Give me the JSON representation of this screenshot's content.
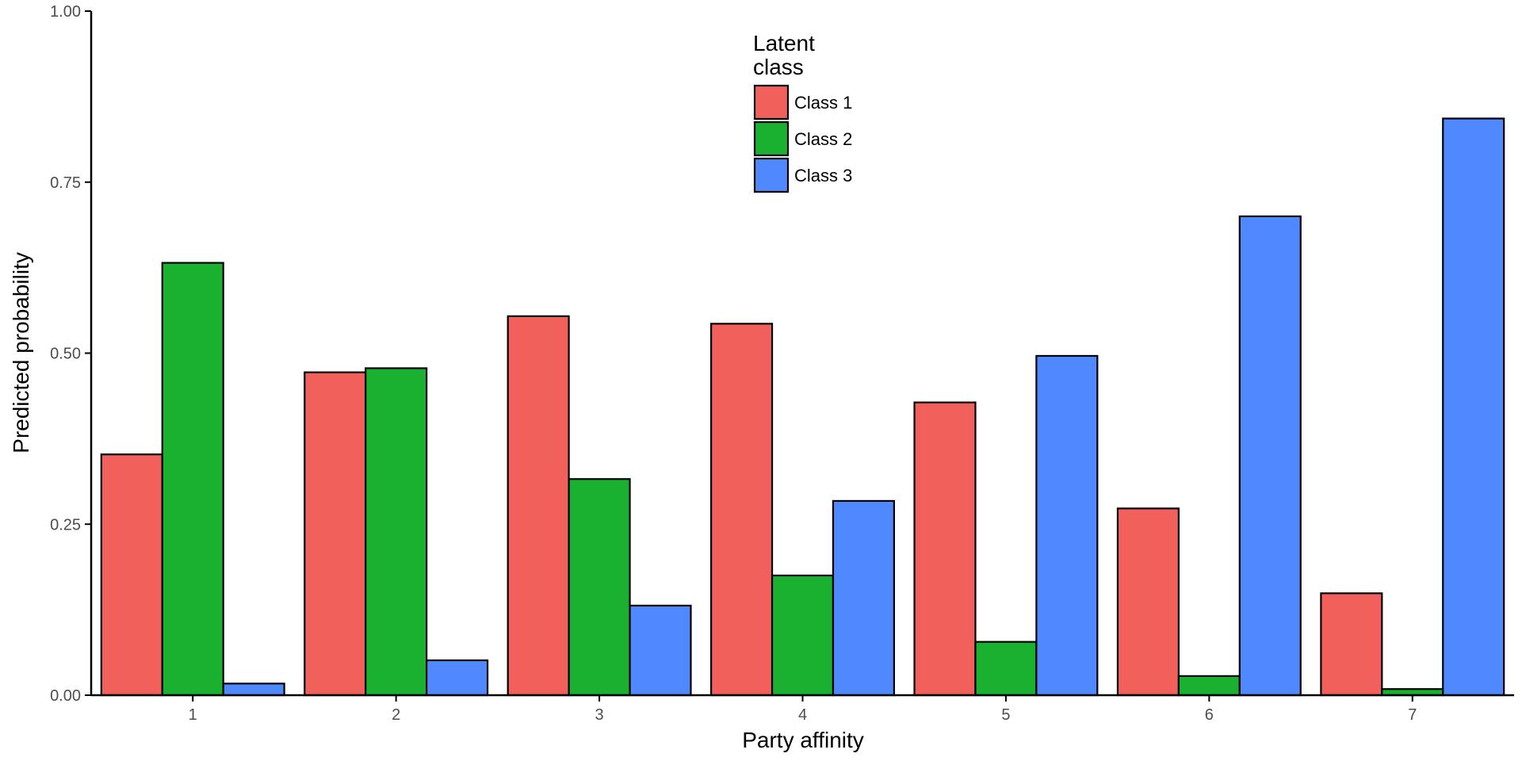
{
  "chart_data": {
    "type": "bar",
    "xlabel": "Party affinity",
    "ylabel": "Predicted probability",
    "categories": [
      "1",
      "2",
      "3",
      "4",
      "5",
      "6",
      "7"
    ],
    "ylim": [
      0,
      1
    ],
    "yticks": [
      "0.00",
      "0.25",
      "0.50",
      "0.75",
      "1.00"
    ],
    "grid": false,
    "legend": {
      "title_lines": [
        "Latent",
        "class"
      ],
      "placement": "top-center"
    },
    "series": [
      {
        "name": "Class 1",
        "color": "#F2605C",
        "values": [
          0.352,
          0.472,
          0.554,
          0.543,
          0.428,
          0.273,
          0.149
        ]
      },
      {
        "name": "Class 2",
        "color": "#1AB030",
        "values": [
          0.632,
          0.478,
          0.316,
          0.175,
          0.078,
          0.028,
          0.009
        ]
      },
      {
        "name": "Class 3",
        "color": "#4F88FF",
        "values": [
          0.017,
          0.051,
          0.131,
          0.284,
          0.496,
          0.7,
          0.843
        ]
      }
    ]
  }
}
